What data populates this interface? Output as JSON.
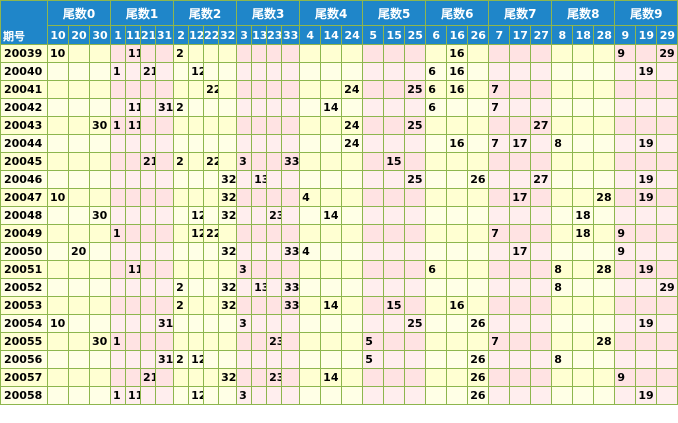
{
  "header": {
    "id_label": "期号",
    "groups": [
      {
        "label": "尾数0",
        "cols": [
          "10",
          "20",
          "30"
        ]
      },
      {
        "label": "尾数1",
        "cols": [
          "1",
          "11",
          "21",
          "31"
        ]
      },
      {
        "label": "尾数2",
        "cols": [
          "2",
          "12",
          "22",
          "32"
        ]
      },
      {
        "label": "尾数3",
        "cols": [
          "3",
          "13",
          "23",
          "33"
        ]
      },
      {
        "label": "尾数4",
        "cols": [
          "4",
          "14",
          "24"
        ]
      },
      {
        "label": "尾数5",
        "cols": [
          "5",
          "15",
          "25"
        ]
      },
      {
        "label": "尾数6",
        "cols": [
          "6",
          "16",
          "26"
        ]
      },
      {
        "label": "尾数7",
        "cols": [
          "7",
          "17",
          "27"
        ]
      },
      {
        "label": "尾数8",
        "cols": [
          "8",
          "18",
          "28"
        ]
      },
      {
        "label": "尾数9",
        "cols": [
          "9",
          "19",
          "29"
        ]
      }
    ]
  },
  "rows": [
    {
      "id": "20039",
      "cells": [
        "10",
        "",
        "",
        "",
        "11",
        "",
        "",
        "2",
        "",
        "",
        "",
        "",
        "",
        "",
        "",
        "",
        "",
        "",
        "",
        "",
        "",
        "",
        "16",
        "",
        "",
        "",
        "",
        "",
        "",
        "",
        "9",
        "",
        "29"
      ]
    },
    {
      "id": "20040",
      "cells": [
        "",
        "",
        "",
        "1",
        "",
        "21",
        "",
        "",
        "12",
        "",
        "",
        "",
        "",
        "",
        "",
        "",
        "",
        "",
        "",
        "",
        "",
        "6",
        "16",
        "",
        "",
        "",
        "",
        "",
        "",
        "",
        "",
        "19",
        ""
      ]
    },
    {
      "id": "20041",
      "cells": [
        "",
        "",
        "",
        "",
        "",
        "",
        "",
        "",
        "",
        "22",
        "",
        "",
        "",
        "",
        "",
        "",
        "",
        "24",
        "",
        "",
        "25",
        "6",
        "16",
        "",
        "7",
        "",
        "",
        "",
        "",
        "",
        "",
        "",
        ""
      ]
    },
    {
      "id": "20042",
      "cells": [
        "",
        "",
        "",
        "",
        "11",
        "",
        "31",
        "2",
        "",
        "",
        "",
        "",
        "",
        "",
        "",
        "",
        "14",
        "",
        "",
        "",
        "",
        "6",
        "",
        "",
        "7",
        "",
        "",
        "",
        "",
        "",
        "",
        "",
        ""
      ]
    },
    {
      "id": "20043",
      "cells": [
        "",
        "",
        "30",
        "1",
        "11",
        "",
        "",
        "",
        "",
        "",
        "",
        "",
        "",
        "",
        "",
        "",
        "",
        "24",
        "",
        "",
        "25",
        "",
        "",
        "",
        "",
        "",
        "27",
        "",
        "",
        "",
        "",
        "",
        ""
      ]
    },
    {
      "id": "20044",
      "cells": [
        "",
        "",
        "",
        "",
        "",
        "",
        "",
        "",
        "",
        "",
        "",
        "",
        "",
        "",
        "",
        "",
        "",
        "24",
        "",
        "",
        "",
        "",
        "16",
        "",
        "7",
        "17",
        "",
        "8",
        "",
        "",
        "",
        "19",
        ""
      ]
    },
    {
      "id": "20045",
      "cells": [
        "",
        "",
        "",
        "",
        "",
        "21",
        "",
        "2",
        "",
        "22",
        "",
        "3",
        "",
        "",
        "33",
        "",
        "",
        "",
        "",
        "15",
        "",
        "",
        "",
        "",
        "",
        "",
        "",
        "",
        "",
        "",
        "",
        "",
        ""
      ]
    },
    {
      "id": "20046",
      "cells": [
        "",
        "",
        "",
        "",
        "",
        "",
        "",
        "",
        "",
        "",
        "32",
        "",
        "13",
        "",
        "",
        "",
        "",
        "",
        "",
        "",
        "25",
        "",
        "",
        "26",
        "",
        "",
        "27",
        "",
        "",
        "",
        "",
        "19",
        ""
      ]
    },
    {
      "id": "20047",
      "cells": [
        "10",
        "",
        "",
        "",
        "",
        "",
        "",
        "",
        "",
        "",
        "32",
        "",
        "",
        "",
        "",
        "4",
        "",
        "",
        "",
        "",
        "",
        "",
        "",
        "",
        "",
        "17",
        "",
        "",
        "",
        "28",
        "",
        "19",
        ""
      ]
    },
    {
      "id": "20048",
      "cells": [
        "",
        "",
        "30",
        "",
        "",
        "",
        "",
        "",
        "12",
        "",
        "32",
        "",
        "",
        "23",
        "",
        "",
        "14",
        "",
        "",
        "",
        "",
        "",
        "",
        "",
        "",
        "",
        "",
        "",
        "18",
        "",
        "",
        "",
        ""
      ]
    },
    {
      "id": "20049",
      "cells": [
        "",
        "",
        "",
        "1",
        "",
        "",
        "",
        "",
        "12",
        "22",
        "",
        "",
        "",
        "",
        "",
        "",
        "",
        "",
        "",
        "",
        "",
        "",
        "",
        "",
        "7",
        "",
        "",
        "",
        "18",
        "",
        "9",
        "",
        ""
      ]
    },
    {
      "id": "20050",
      "cells": [
        "",
        "20",
        "",
        "",
        "",
        "",
        "",
        "",
        "",
        "",
        "32",
        "",
        "",
        "",
        "33",
        "4",
        "",
        "",
        "",
        "",
        "",
        "",
        "",
        "",
        "",
        "17",
        "",
        "",
        "",
        "",
        "9",
        "",
        ""
      ]
    },
    {
      "id": "20051",
      "cells": [
        "",
        "",
        "",
        "",
        "11",
        "",
        "",
        "",
        "",
        "",
        "",
        "3",
        "",
        "",
        "",
        "",
        "",
        "",
        "",
        "",
        "",
        "6",
        "",
        "",
        "",
        "",
        "",
        "8",
        "",
        "28",
        "",
        "19",
        ""
      ]
    },
    {
      "id": "20052",
      "cells": [
        "",
        "",
        "",
        "",
        "",
        "",
        "",
        "2",
        "",
        "",
        "32",
        "",
        "13",
        "",
        "33",
        "",
        "",
        "",
        "",
        "",
        "",
        "",
        "",
        "",
        "",
        "",
        "",
        "8",
        "",
        "",
        "",
        "",
        "29"
      ]
    },
    {
      "id": "20053",
      "cells": [
        "",
        "",
        "",
        "",
        "",
        "",
        "",
        "2",
        "",
        "",
        "32",
        "",
        "",
        "",
        "33",
        "",
        "14",
        "",
        "",
        "15",
        "",
        "",
        "16",
        "",
        "",
        "",
        "",
        "",
        "",
        "",
        "",
        "",
        ""
      ]
    },
    {
      "id": "20054",
      "cells": [
        "10",
        "",
        "",
        "",
        "",
        "",
        "31",
        "",
        "",
        "",
        "",
        "3",
        "",
        "",
        "",
        "",
        "",
        "",
        "",
        "",
        "25",
        "",
        "",
        "26",
        "",
        "",
        "",
        "",
        "",
        "",
        "",
        "19",
        ""
      ]
    },
    {
      "id": "20055",
      "cells": [
        "",
        "",
        "30",
        "1",
        "",
        "",
        "",
        "",
        "",
        "",
        "",
        "",
        "",
        "23",
        "",
        "",
        "",
        "",
        "5",
        "",
        "",
        "",
        "",
        "",
        "7",
        "",
        "",
        "",
        "",
        "28",
        "",
        "",
        ""
      ]
    },
    {
      "id": "20056",
      "cells": [
        "",
        "",
        "",
        "",
        "",
        "",
        "31",
        "2",
        "12",
        "",
        "",
        "",
        "",
        "",
        "",
        "",
        "",
        "",
        "5",
        "",
        "",
        "",
        "",
        "26",
        "",
        "",
        "",
        "8",
        "",
        "",
        "",
        "",
        ""
      ]
    },
    {
      "id": "20057",
      "cells": [
        "",
        "",
        "",
        "",
        "",
        "21",
        "",
        "",
        "",
        "",
        "32",
        "",
        "",
        "23",
        "",
        "",
        "14",
        "",
        "",
        "",
        "",
        "",
        "",
        "26",
        "",
        "",
        "",
        "",
        "",
        "",
        "9",
        "",
        ""
      ]
    },
    {
      "id": "20058",
      "cells": [
        "",
        "",
        "",
        "1",
        "11",
        "",
        "",
        "",
        "12",
        "",
        "",
        "3",
        "",
        "",
        "",
        "",
        "",
        "",
        "",
        "",
        "",
        "",
        "",
        "26",
        "",
        "",
        "",
        "",
        "",
        "",
        "",
        "19",
        ""
      ]
    }
  ],
  "colors": {
    "header_bg": "#1f86c9",
    "header_text": "#ffffff",
    "grid_line": "#8db64e",
    "cell_yellow": "#ffffd2",
    "cell_pink": "#ffe3e3"
  }
}
